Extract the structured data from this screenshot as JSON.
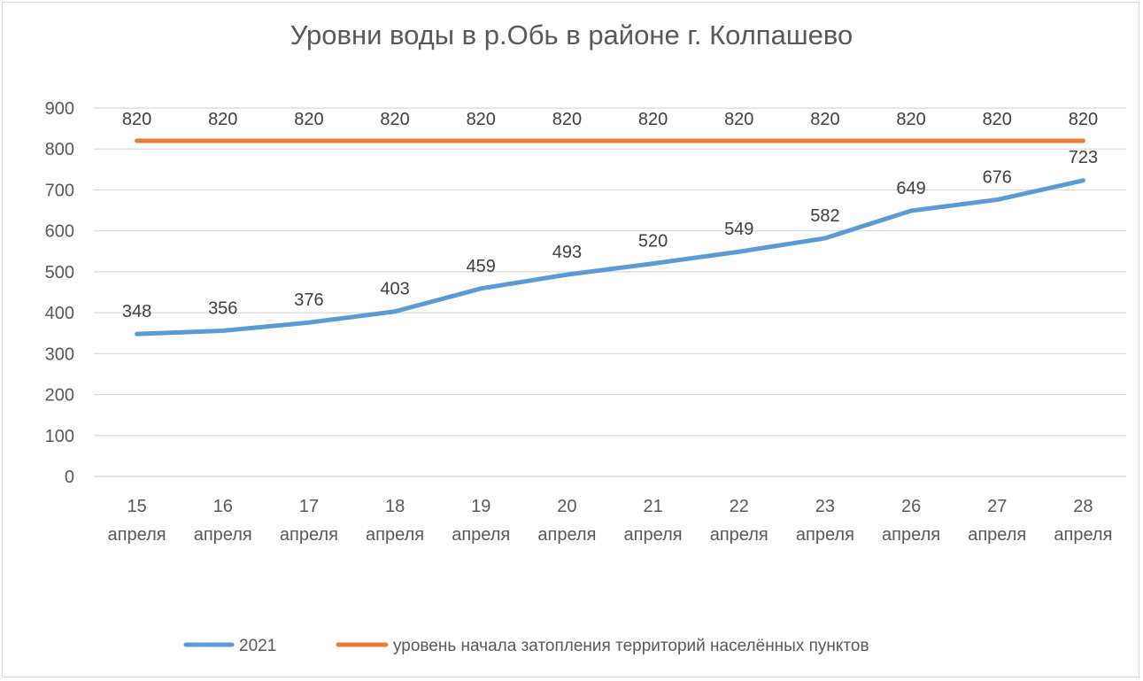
{
  "chart_data": {
    "type": "line",
    "title": "Уровни воды в р.Обь в районе г. Колпашево",
    "xlabel": "",
    "ylabel": "",
    "ylim": [
      0,
      900
    ],
    "yticks": [
      0,
      100,
      200,
      300,
      400,
      500,
      600,
      700,
      800,
      900
    ],
    "categories": [
      {
        "day": "15",
        "month": "апреля"
      },
      {
        "day": "16",
        "month": "апреля"
      },
      {
        "day": "17",
        "month": "апреля"
      },
      {
        "day": "18",
        "month": "апреля"
      },
      {
        "day": "19",
        "month": "апреля"
      },
      {
        "day": "20",
        "month": "апреля"
      },
      {
        "day": "21",
        "month": "апреля"
      },
      {
        "day": "22",
        "month": "апреля"
      },
      {
        "day": "23",
        "month": "апреля"
      },
      {
        "day": "26",
        "month": "апреля"
      },
      {
        "day": "27",
        "month": "апреля"
      },
      {
        "day": "28",
        "month": "апреля"
      }
    ],
    "series": [
      {
        "name": "2021",
        "color": "#5b9bd5",
        "values": [
          348,
          356,
          376,
          403,
          459,
          493,
          520,
          549,
          582,
          649,
          676,
          723
        ]
      },
      {
        "name": "уровень начала затопления территорий населённых пунктов",
        "color": "#ed7d31",
        "values": [
          820,
          820,
          820,
          820,
          820,
          820,
          820,
          820,
          820,
          820,
          820,
          820
        ]
      }
    ],
    "grid": true,
    "legend_position": "bottom"
  }
}
